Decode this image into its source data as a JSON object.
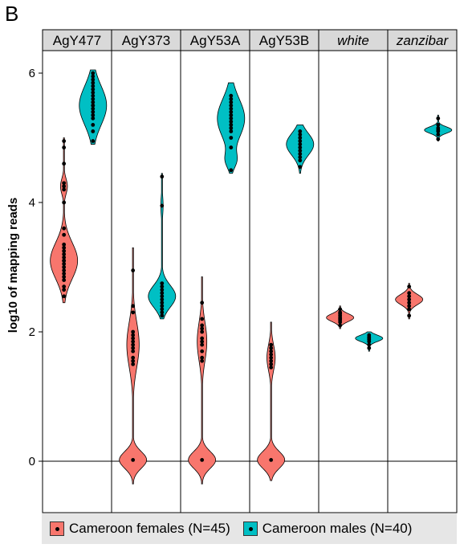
{
  "panel_letter": "B",
  "colors": {
    "female": "#F8766D",
    "male": "#00BFC4",
    "strip": "#d9d9d9",
    "legend_bg": "#e6e6e6"
  },
  "legend": [
    {
      "key": "female",
      "label": "Cameroon females (N=45)",
      "color": "#F8766D"
    },
    {
      "key": "male",
      "label": "Cameroon males (N=40)",
      "color": "#00BFC4"
    }
  ],
  "chart_data": {
    "type": "violin",
    "ylabel": "log10 of mapping reads",
    "ylim": [
      -0.8,
      6.4
    ],
    "yticks": [
      0,
      2,
      4,
      6
    ],
    "hline": 0,
    "panels": [
      {
        "label": "AgY477",
        "italic": false,
        "female": {
          "min": 2.45,
          "max": 5.0,
          "modes": [
            [
              3.1,
              0.28,
              1.0
            ],
            [
              4.25,
              0.12,
              0.25
            ]
          ],
          "points": [
            2.55,
            2.65,
            2.7,
            2.8,
            2.85,
            2.9,
            2.95,
            3.0,
            3.05,
            3.1,
            3.1,
            3.15,
            3.2,
            3.25,
            3.3,
            3.35,
            3.5,
            3.6,
            4.0,
            4.2,
            4.25,
            4.3,
            4.6,
            4.85,
            4.95
          ]
        },
        "male": {
          "min": 4.9,
          "max": 6.05,
          "modes": [
            [
              5.5,
              0.3,
              1.0
            ]
          ],
          "points": [
            4.95,
            5.1,
            5.2,
            5.3,
            5.35,
            5.4,
            5.45,
            5.5,
            5.5,
            5.55,
            5.6,
            5.65,
            5.7,
            5.75,
            5.8,
            5.85,
            5.9,
            5.95,
            6.0
          ]
        }
      },
      {
        "label": "AgY373",
        "italic": false,
        "female": {
          "min": -0.35,
          "max": 3.3,
          "modes": [
            [
              0.02,
              0.13,
              1.0
            ],
            [
              1.8,
              0.35,
              0.45
            ]
          ],
          "points": [
            0.02,
            1.5,
            1.55,
            1.6,
            1.7,
            1.75,
            1.8,
            1.85,
            1.9,
            1.95,
            2.0,
            2.3,
            2.4,
            2.95
          ]
        },
        "male": {
          "min": 2.2,
          "max": 4.45,
          "modes": [
            [
              2.55,
              0.17,
              1.0
            ],
            [
              3.95,
              0.15,
              0.08
            ]
          ],
          "points": [
            2.25,
            2.3,
            2.35,
            2.4,
            2.45,
            2.5,
            2.55,
            2.6,
            2.65,
            2.7,
            2.75,
            3.95,
            4.4
          ]
        }
      },
      {
        "label": "AgY53A",
        "italic": false,
        "female": {
          "min": -0.35,
          "max": 2.85,
          "modes": [
            [
              0.02,
              0.13,
              1.0
            ],
            [
              1.85,
              0.3,
              0.35
            ]
          ],
          "points": [
            0.02,
            1.55,
            1.6,
            1.7,
            1.8,
            1.85,
            1.9,
            2.0,
            2.05,
            2.1,
            2.2,
            2.45
          ]
        },
        "male": {
          "min": 4.45,
          "max": 5.85,
          "modes": [
            [
              5.3,
              0.3,
              1.0
            ],
            [
              4.65,
              0.12,
              0.35
            ]
          ],
          "points": [
            4.5,
            4.85,
            5.0,
            5.1,
            5.15,
            5.2,
            5.25,
            5.3,
            5.35,
            5.4,
            5.45,
            5.5,
            5.55,
            5.6,
            5.65
          ]
        }
      },
      {
        "label": "AgY53B",
        "italic": false,
        "female": {
          "min": -0.3,
          "max": 2.15,
          "modes": [
            [
              0.02,
              0.13,
              1.0
            ],
            [
              1.6,
              0.2,
              0.3
            ]
          ],
          "points": [
            0.02,
            1.45,
            1.5,
            1.55,
            1.6,
            1.65,
            1.7,
            1.75,
            1.8
          ]
        },
        "male": {
          "min": 4.45,
          "max": 5.2,
          "modes": [
            [
              4.9,
              0.17,
              1.0
            ]
          ],
          "points": [
            4.55,
            4.65,
            4.7,
            4.75,
            4.8,
            4.85,
            4.9,
            4.95,
            5.0,
            5.05,
            5.1
          ]
        }
      },
      {
        "label": "white",
        "italic": true,
        "female": {
          "min": 2.05,
          "max": 2.4,
          "modes": [
            [
              2.22,
              0.06,
              1.0
            ]
          ],
          "points": [
            2.1,
            2.15,
            2.18,
            2.2,
            2.22,
            2.25,
            2.28,
            2.3,
            2.35
          ]
        },
        "male": {
          "min": 1.7,
          "max": 2.0,
          "modes": [
            [
              1.9,
              0.05,
              1.0
            ]
          ],
          "points": [
            1.75,
            1.8,
            1.85,
            1.88,
            1.9,
            1.92,
            1.95
          ]
        }
      },
      {
        "label": "zanzibar",
        "italic": true,
        "female": {
          "min": 2.2,
          "max": 2.75,
          "modes": [
            [
              2.5,
              0.08,
              1.0
            ]
          ],
          "points": [
            2.25,
            2.35,
            2.4,
            2.45,
            2.5,
            2.55,
            2.6,
            2.7
          ]
        },
        "male": {
          "min": 4.95,
          "max": 5.35,
          "modes": [
            [
              5.12,
              0.05,
              1.0
            ]
          ],
          "points": [
            4.98,
            5.05,
            5.1,
            5.12,
            5.15,
            5.2,
            5.3
          ]
        }
      }
    ]
  }
}
